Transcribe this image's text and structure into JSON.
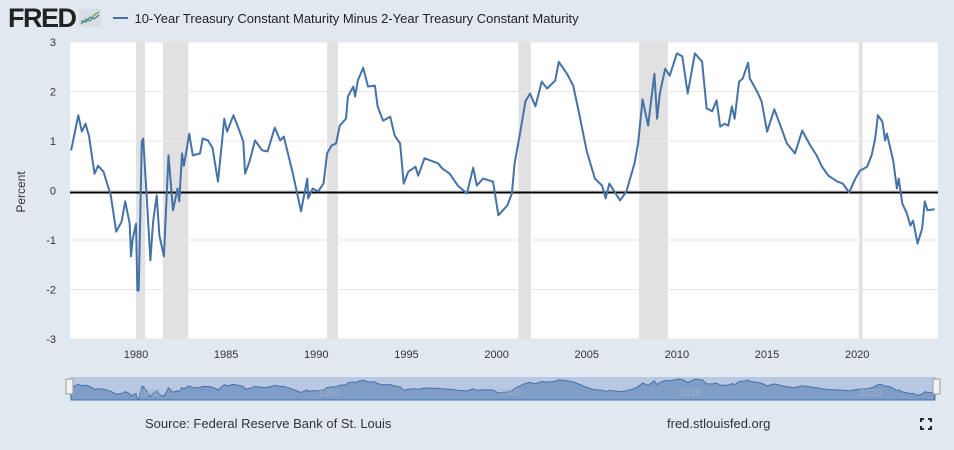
{
  "header": {
    "logo": "FRED",
    "logo_icon": "line-chart-icon"
  },
  "footer": {
    "source": "Source: Federal Reserve Bank of St. Louis",
    "url": "fred.stlouisfed.org",
    "fullscreen_icon": "fullscreen-icon"
  },
  "colors": {
    "series": "#4572a7",
    "recession": "#e1e1e1",
    "background": "#e1e9f0",
    "zero_line": "#000000"
  },
  "chart_data": {
    "type": "line",
    "title": "",
    "ylabel": "Percent",
    "xlabel": "",
    "ylim": [
      -3,
      3
    ],
    "yticks": [
      "3",
      "2",
      "1",
      "0",
      "-1",
      "-2",
      "-3"
    ],
    "xlim": [
      1976.4,
      2024.4
    ],
    "xticks": [
      "1980",
      "1985",
      "1990",
      "1995",
      "2000",
      "2005",
      "2010",
      "2015",
      "2020"
    ],
    "navigator_ticks": [
      "1980",
      "1990",
      "2000",
      "2010",
      "2020"
    ],
    "grid": true,
    "legend_placement": "top-left",
    "recessions": [
      [
        1980.0,
        1980.5
      ],
      [
        1981.5,
        1982.9
      ],
      [
        1990.6,
        1991.2
      ],
      [
        2001.2,
        2001.9
      ],
      [
        2007.9,
        2009.5
      ],
      [
        2020.1,
        2020.3
      ]
    ],
    "series": [
      {
        "name": "10-Year Treasury Constant Maturity Minus 2-Year Treasury Constant Maturity",
        "points": [
          [
            1976.4,
            0.81
          ],
          [
            1976.8,
            1.52
          ],
          [
            1977.0,
            1.19
          ],
          [
            1977.2,
            1.35
          ],
          [
            1977.4,
            1.09
          ],
          [
            1977.7,
            0.34
          ],
          [
            1977.9,
            0.5
          ],
          [
            1978.2,
            0.38
          ],
          [
            1978.6,
            -0.1
          ],
          [
            1978.9,
            -0.83
          ],
          [
            1979.2,
            -0.63
          ],
          [
            1979.4,
            -0.22
          ],
          [
            1979.65,
            -0.67
          ],
          [
            1979.72,
            -1.33
          ],
          [
            1979.82,
            -0.97
          ],
          [
            1980.0,
            -0.67
          ],
          [
            1980.08,
            -2.02
          ],
          [
            1980.15,
            -2.02
          ],
          [
            1980.32,
            0.99
          ],
          [
            1980.4,
            1.05
          ],
          [
            1980.6,
            -0.16
          ],
          [
            1980.8,
            -1.41
          ],
          [
            1980.95,
            -0.63
          ],
          [
            1981.15,
            -0.1
          ],
          [
            1981.3,
            -0.91
          ],
          [
            1981.55,
            -1.33
          ],
          [
            1981.8,
            0.71
          ],
          [
            1982.05,
            -0.4
          ],
          [
            1982.3,
            0.04
          ],
          [
            1982.4,
            -0.22
          ],
          [
            1982.55,
            0.75
          ],
          [
            1982.65,
            0.5
          ],
          [
            1982.8,
            0.81
          ],
          [
            1982.95,
            1.15
          ],
          [
            1983.15,
            0.71
          ],
          [
            1983.55,
            0.75
          ],
          [
            1983.7,
            1.05
          ],
          [
            1984.0,
            1.01
          ],
          [
            1984.25,
            0.85
          ],
          [
            1984.55,
            0.18
          ],
          [
            1984.9,
            1.45
          ],
          [
            1985.05,
            1.19
          ],
          [
            1985.4,
            1.52
          ],
          [
            1985.65,
            1.29
          ],
          [
            1985.95,
            0.99
          ],
          [
            1986.05,
            0.34
          ],
          [
            1986.3,
            0.59
          ],
          [
            1986.6,
            1.01
          ],
          [
            1987.0,
            0.81
          ],
          [
            1987.3,
            0.79
          ],
          [
            1987.7,
            1.27
          ],
          [
            1988.0,
            1.01
          ],
          [
            1988.2,
            1.09
          ],
          [
            1988.45,
            0.71
          ],
          [
            1988.7,
            0.34
          ],
          [
            1989.15,
            -0.42
          ],
          [
            1989.5,
            0.24
          ],
          [
            1989.55,
            -0.16
          ],
          [
            1989.8,
            0.04
          ],
          [
            1990.1,
            -0.02
          ],
          [
            1990.4,
            0.14
          ],
          [
            1990.6,
            0.75
          ],
          [
            1990.85,
            0.91
          ],
          [
            1991.1,
            0.95
          ],
          [
            1991.3,
            1.31
          ],
          [
            1991.65,
            1.45
          ],
          [
            1991.75,
            1.9
          ],
          [
            1992.05,
            2.1
          ],
          [
            1992.15,
            1.9
          ],
          [
            1992.3,
            2.22
          ],
          [
            1992.6,
            2.48
          ],
          [
            1992.87,
            2.1
          ],
          [
            1993.25,
            2.12
          ],
          [
            1993.4,
            1.7
          ],
          [
            1993.7,
            1.41
          ],
          [
            1994.1,
            1.49
          ],
          [
            1994.35,
            1.11
          ],
          [
            1994.65,
            0.95
          ],
          [
            1994.85,
            0.14
          ],
          [
            1995.1,
            0.38
          ],
          [
            1995.5,
            0.48
          ],
          [
            1995.65,
            0.3
          ],
          [
            1996.0,
            0.65
          ],
          [
            1996.75,
            0.55
          ],
          [
            1997.0,
            0.44
          ],
          [
            1997.4,
            0.34
          ],
          [
            1997.85,
            0.1
          ],
          [
            1998.35,
            -0.06
          ],
          [
            1998.7,
            0.46
          ],
          [
            1998.9,
            0.1
          ],
          [
            1999.25,
            0.24
          ],
          [
            1999.8,
            0.18
          ],
          [
            2000.1,
            -0.5
          ],
          [
            2000.6,
            -0.3
          ],
          [
            2000.85,
            -0.06
          ],
          [
            2001.0,
            0.55
          ],
          [
            2001.3,
            1.15
          ],
          [
            2001.6,
            1.8
          ],
          [
            2001.85,
            1.96
          ],
          [
            2002.15,
            1.7
          ],
          [
            2002.5,
            2.2
          ],
          [
            2002.8,
            2.06
          ],
          [
            2003.25,
            2.22
          ],
          [
            2003.45,
            2.6
          ],
          [
            2003.9,
            2.36
          ],
          [
            2004.25,
            2.12
          ],
          [
            2004.6,
            1.52
          ],
          [
            2005.0,
            0.79
          ],
          [
            2005.45,
            0.24
          ],
          [
            2005.85,
            0.1
          ],
          [
            2006.05,
            -0.16
          ],
          [
            2006.25,
            0.14
          ],
          [
            2006.85,
            -0.2
          ],
          [
            2007.2,
            -0.02
          ],
          [
            2007.65,
            0.55
          ],
          [
            2007.85,
            0.95
          ],
          [
            2008.1,
            1.84
          ],
          [
            2008.4,
            1.31
          ],
          [
            2008.75,
            2.36
          ],
          [
            2008.9,
            1.45
          ],
          [
            2009.05,
            1.96
          ],
          [
            2009.35,
            2.46
          ],
          [
            2009.6,
            2.32
          ],
          [
            2010.0,
            2.77
          ],
          [
            2010.3,
            2.71
          ],
          [
            2010.6,
            1.96
          ],
          [
            2011.0,
            2.77
          ],
          [
            2011.4,
            2.6
          ],
          [
            2011.65,
            1.66
          ],
          [
            2011.95,
            1.6
          ],
          [
            2012.2,
            1.82
          ],
          [
            2012.4,
            1.29
          ],
          [
            2012.65,
            1.35
          ],
          [
            2012.85,
            1.31
          ],
          [
            2013.05,
            1.7
          ],
          [
            2013.2,
            1.45
          ],
          [
            2013.45,
            2.2
          ],
          [
            2013.65,
            2.26
          ],
          [
            2013.95,
            2.58
          ],
          [
            2014.05,
            2.26
          ],
          [
            2014.45,
            2.0
          ],
          [
            2014.7,
            1.8
          ],
          [
            2015.0,
            1.19
          ],
          [
            2015.4,
            1.64
          ],
          [
            2015.7,
            1.35
          ],
          [
            2016.1,
            0.95
          ],
          [
            2016.55,
            0.75
          ],
          [
            2016.95,
            1.21
          ],
          [
            2017.4,
            0.91
          ],
          [
            2017.75,
            0.71
          ],
          [
            2018.05,
            0.48
          ],
          [
            2018.4,
            0.3
          ],
          [
            2018.9,
            0.18
          ],
          [
            2019.2,
            0.14
          ],
          [
            2019.55,
            -0.04
          ],
          [
            2019.9,
            0.24
          ],
          [
            2020.15,
            0.4
          ],
          [
            2020.55,
            0.48
          ],
          [
            2020.8,
            0.71
          ],
          [
            2021.0,
            1.05
          ],
          [
            2021.15,
            1.52
          ],
          [
            2021.4,
            1.39
          ],
          [
            2021.55,
            1.01
          ],
          [
            2021.65,
            1.15
          ],
          [
            2022.0,
            0.59
          ],
          [
            2022.2,
            0.04
          ],
          [
            2022.3,
            0.24
          ],
          [
            2022.5,
            -0.26
          ],
          [
            2022.75,
            -0.46
          ],
          [
            2022.95,
            -0.71
          ],
          [
            2023.1,
            -0.61
          ],
          [
            2023.35,
            -1.07
          ],
          [
            2023.6,
            -0.77
          ],
          [
            2023.75,
            -0.22
          ],
          [
            2023.9,
            -0.4
          ],
          [
            2024.3,
            -0.38
          ]
        ]
      }
    ]
  }
}
